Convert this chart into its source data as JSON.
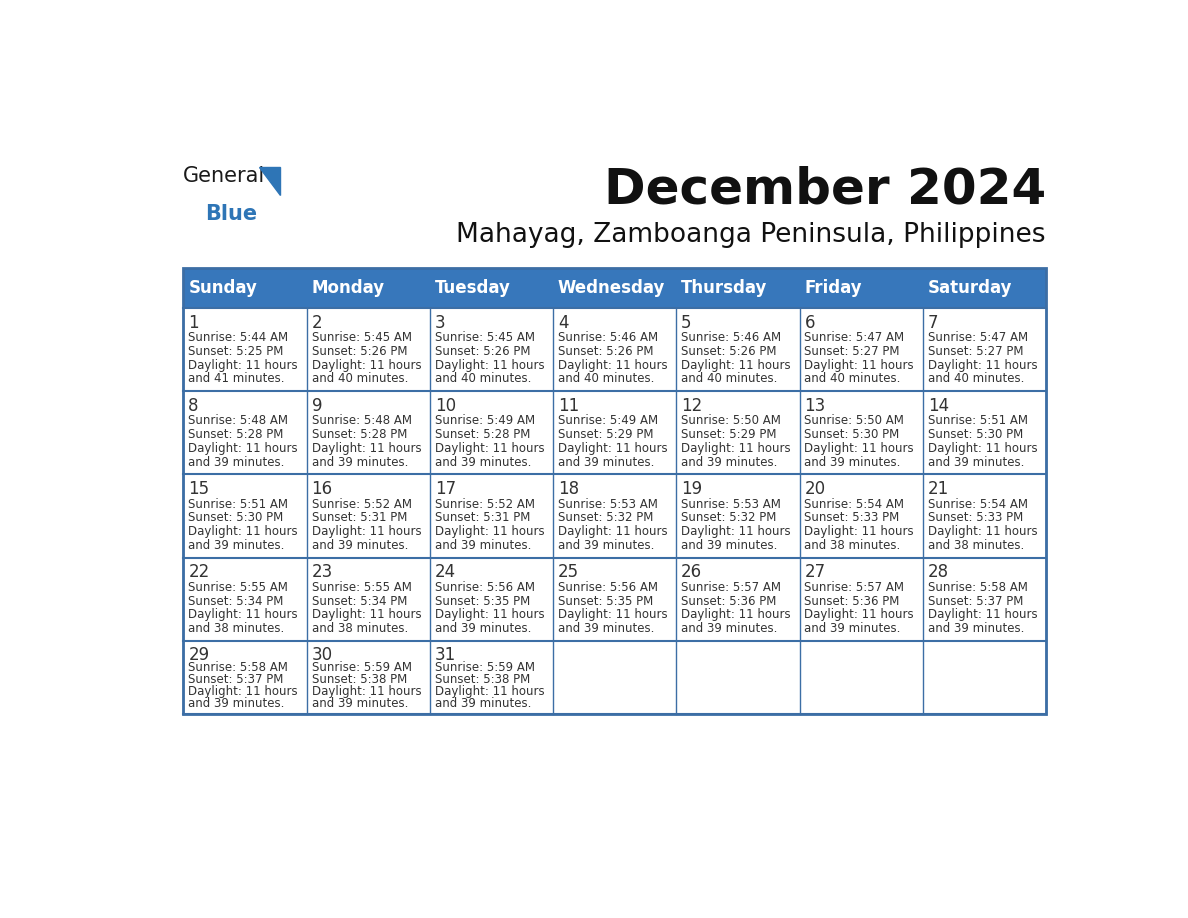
{
  "title": "December 2024",
  "subtitle": "Mahayag, Zamboanga Peninsula, Philippines",
  "days_of_week": [
    "Sunday",
    "Monday",
    "Tuesday",
    "Wednesday",
    "Thursday",
    "Friday",
    "Saturday"
  ],
  "header_bg": "#3777BB",
  "header_text": "#FFFFFF",
  "row_bg": "#FFFFFF",
  "cell_text_color": "#333333",
  "day_num_color": "#333333",
  "border_color": "#3c6ea5",
  "row_separator_color": "#3c6ea5",
  "title_color": "#111111",
  "subtitle_color": "#111111",
  "logo_general_color": "#1a1a1a",
  "logo_blue_color": "#2E75B6",
  "logo_triangle_color": "#2E75B6",
  "weeks": [
    {
      "days": [
        {
          "date": 1,
          "sunrise": "5:44 AM",
          "sunset": "5:25 PM",
          "daylight_hours": 11,
          "daylight_minutes": 41
        },
        {
          "date": 2,
          "sunrise": "5:45 AM",
          "sunset": "5:26 PM",
          "daylight_hours": 11,
          "daylight_minutes": 40
        },
        {
          "date": 3,
          "sunrise": "5:45 AM",
          "sunset": "5:26 PM",
          "daylight_hours": 11,
          "daylight_minutes": 40
        },
        {
          "date": 4,
          "sunrise": "5:46 AM",
          "sunset": "5:26 PM",
          "daylight_hours": 11,
          "daylight_minutes": 40
        },
        {
          "date": 5,
          "sunrise": "5:46 AM",
          "sunset": "5:26 PM",
          "daylight_hours": 11,
          "daylight_minutes": 40
        },
        {
          "date": 6,
          "sunrise": "5:47 AM",
          "sunset": "5:27 PM",
          "daylight_hours": 11,
          "daylight_minutes": 40
        },
        {
          "date": 7,
          "sunrise": "5:47 AM",
          "sunset": "5:27 PM",
          "daylight_hours": 11,
          "daylight_minutes": 40
        }
      ]
    },
    {
      "days": [
        {
          "date": 8,
          "sunrise": "5:48 AM",
          "sunset": "5:28 PM",
          "daylight_hours": 11,
          "daylight_minutes": 39
        },
        {
          "date": 9,
          "sunrise": "5:48 AM",
          "sunset": "5:28 PM",
          "daylight_hours": 11,
          "daylight_minutes": 39
        },
        {
          "date": 10,
          "sunrise": "5:49 AM",
          "sunset": "5:28 PM",
          "daylight_hours": 11,
          "daylight_minutes": 39
        },
        {
          "date": 11,
          "sunrise": "5:49 AM",
          "sunset": "5:29 PM",
          "daylight_hours": 11,
          "daylight_minutes": 39
        },
        {
          "date": 12,
          "sunrise": "5:50 AM",
          "sunset": "5:29 PM",
          "daylight_hours": 11,
          "daylight_minutes": 39
        },
        {
          "date": 13,
          "sunrise": "5:50 AM",
          "sunset": "5:30 PM",
          "daylight_hours": 11,
          "daylight_minutes": 39
        },
        {
          "date": 14,
          "sunrise": "5:51 AM",
          "sunset": "5:30 PM",
          "daylight_hours": 11,
          "daylight_minutes": 39
        }
      ]
    },
    {
      "days": [
        {
          "date": 15,
          "sunrise": "5:51 AM",
          "sunset": "5:30 PM",
          "daylight_hours": 11,
          "daylight_minutes": 39
        },
        {
          "date": 16,
          "sunrise": "5:52 AM",
          "sunset": "5:31 PM",
          "daylight_hours": 11,
          "daylight_minutes": 39
        },
        {
          "date": 17,
          "sunrise": "5:52 AM",
          "sunset": "5:31 PM",
          "daylight_hours": 11,
          "daylight_minutes": 39
        },
        {
          "date": 18,
          "sunrise": "5:53 AM",
          "sunset": "5:32 PM",
          "daylight_hours": 11,
          "daylight_minutes": 39
        },
        {
          "date": 19,
          "sunrise": "5:53 AM",
          "sunset": "5:32 PM",
          "daylight_hours": 11,
          "daylight_minutes": 39
        },
        {
          "date": 20,
          "sunrise": "5:54 AM",
          "sunset": "5:33 PM",
          "daylight_hours": 11,
          "daylight_minutes": 38
        },
        {
          "date": 21,
          "sunrise": "5:54 AM",
          "sunset": "5:33 PM",
          "daylight_hours": 11,
          "daylight_minutes": 38
        }
      ]
    },
    {
      "days": [
        {
          "date": 22,
          "sunrise": "5:55 AM",
          "sunset": "5:34 PM",
          "daylight_hours": 11,
          "daylight_minutes": 38
        },
        {
          "date": 23,
          "sunrise": "5:55 AM",
          "sunset": "5:34 PM",
          "daylight_hours": 11,
          "daylight_minutes": 38
        },
        {
          "date": 24,
          "sunrise": "5:56 AM",
          "sunset": "5:35 PM",
          "daylight_hours": 11,
          "daylight_minutes": 39
        },
        {
          "date": 25,
          "sunrise": "5:56 AM",
          "sunset": "5:35 PM",
          "daylight_hours": 11,
          "daylight_minutes": 39
        },
        {
          "date": 26,
          "sunrise": "5:57 AM",
          "sunset": "5:36 PM",
          "daylight_hours": 11,
          "daylight_minutes": 39
        },
        {
          "date": 27,
          "sunrise": "5:57 AM",
          "sunset": "5:36 PM",
          "daylight_hours": 11,
          "daylight_minutes": 39
        },
        {
          "date": 28,
          "sunrise": "5:58 AM",
          "sunset": "5:37 PM",
          "daylight_hours": 11,
          "daylight_minutes": 39
        }
      ]
    },
    {
      "days": [
        {
          "date": 29,
          "sunrise": "5:58 AM",
          "sunset": "5:37 PM",
          "daylight_hours": 11,
          "daylight_minutes": 39
        },
        {
          "date": 30,
          "sunrise": "5:59 AM",
          "sunset": "5:38 PM",
          "daylight_hours": 11,
          "daylight_minutes": 39
        },
        {
          "date": 31,
          "sunrise": "5:59 AM",
          "sunset": "5:38 PM",
          "daylight_hours": 11,
          "daylight_minutes": 39
        },
        null,
        null,
        null,
        null
      ]
    }
  ]
}
